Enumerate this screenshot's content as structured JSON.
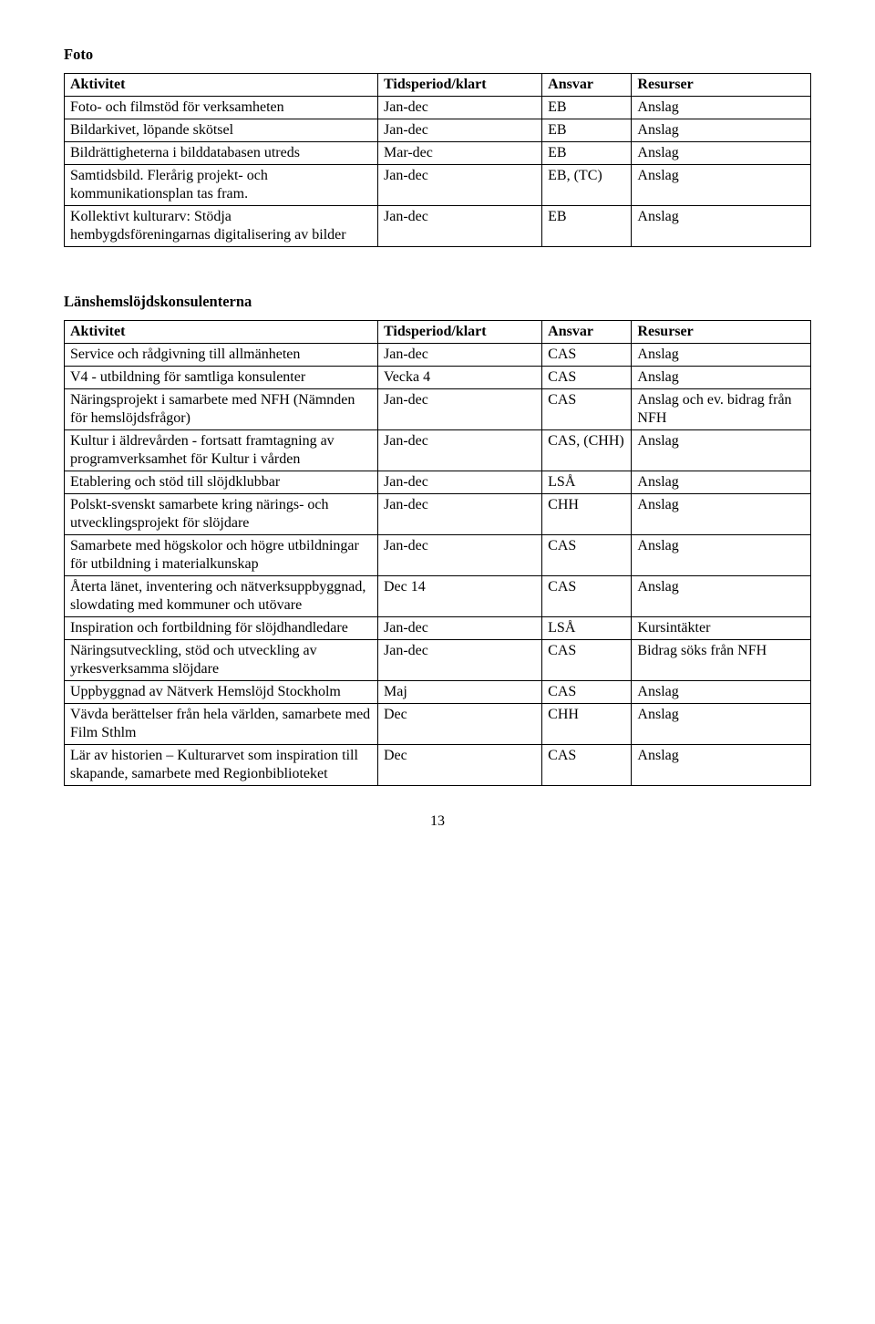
{
  "foto": {
    "title": "Foto",
    "headers": [
      "Aktivitet",
      "Tidsperiod/klart",
      "Ansvar",
      "Resurser"
    ],
    "rows": [
      [
        "Foto- och filmstöd för verksamheten",
        "Jan-dec",
        "EB",
        "Anslag"
      ],
      [
        "Bildarkivet, löpande skötsel",
        "Jan-dec",
        "EB",
        "Anslag"
      ],
      [
        "Bildrättigheterna i bilddatabasen utreds",
        "Mar-dec",
        "EB",
        "Anslag"
      ],
      [
        "Samtidsbild. Flerårig projekt- och kommunikationsplan tas fram.",
        "Jan-dec",
        "EB, (TC)",
        "Anslag"
      ],
      [
        "Kollektivt kulturarv: Stödja hembygdsföreningarnas digitalisering av bilder",
        "Jan-dec",
        "EB",
        "Anslag"
      ]
    ]
  },
  "lans": {
    "title": "Länshemslöjdskonsulenterna",
    "headers": [
      "Aktivitet",
      "Tidsperiod/klart",
      "Ansvar",
      "Resurser"
    ],
    "rows": [
      [
        "Service och rådgivning till allmänheten",
        "Jan-dec",
        "CAS",
        "Anslag"
      ],
      [
        "V4 - utbildning för samtliga konsulenter",
        "Vecka 4",
        "CAS",
        "Anslag"
      ],
      [
        "Näringsprojekt i samarbete med NFH (Nämnden för hemslöjdsfrågor)",
        "Jan-dec",
        "CAS",
        "Anslag och ev. bidrag från NFH"
      ],
      [
        "Kultur i äldrevården - fortsatt framtagning av programverksamhet för Kultur i vården",
        "Jan-dec",
        "CAS, (CHH)",
        "Anslag"
      ],
      [
        "Etablering och stöd till slöjdklubbar",
        "Jan-dec",
        "LSÅ",
        "Anslag"
      ],
      [
        "Polskt-svenskt samarbete kring närings- och utvecklingsprojekt för slöjdare",
        "Jan-dec",
        "CHH",
        "Anslag"
      ],
      [
        "Samarbete med högskolor och högre utbildningar för utbildning i materialkunskap",
        "Jan-dec",
        "CAS",
        "Anslag"
      ],
      [
        "Återta länet, inventering och nätverksuppbyggnad, slowdating med kommuner och utövare",
        "Dec 14",
        "CAS",
        "Anslag"
      ],
      [
        "Inspiration och fortbildning för slöjdhandledare",
        "Jan-dec",
        "LSÅ",
        "Kursintäkter"
      ],
      [
        "Näringsutveckling, stöd och utveckling av yrkesverksamma slöjdare",
        "Jan-dec",
        "CAS",
        "Bidrag söks från NFH"
      ],
      [
        "Uppbyggnad av Nätverk Hemslöjd Stockholm",
        "Maj",
        "CAS",
        "Anslag"
      ],
      [
        "Vävda berättelser från hela världen, samarbete med Film Sthlm",
        "Dec",
        "CHH",
        "Anslag"
      ],
      [
        "Lär av historien – Kulturarvet som inspiration till skapande, samarbete med Regionbiblioteket",
        "Dec",
        "CAS",
        "Anslag"
      ]
    ]
  },
  "page_number": "13"
}
